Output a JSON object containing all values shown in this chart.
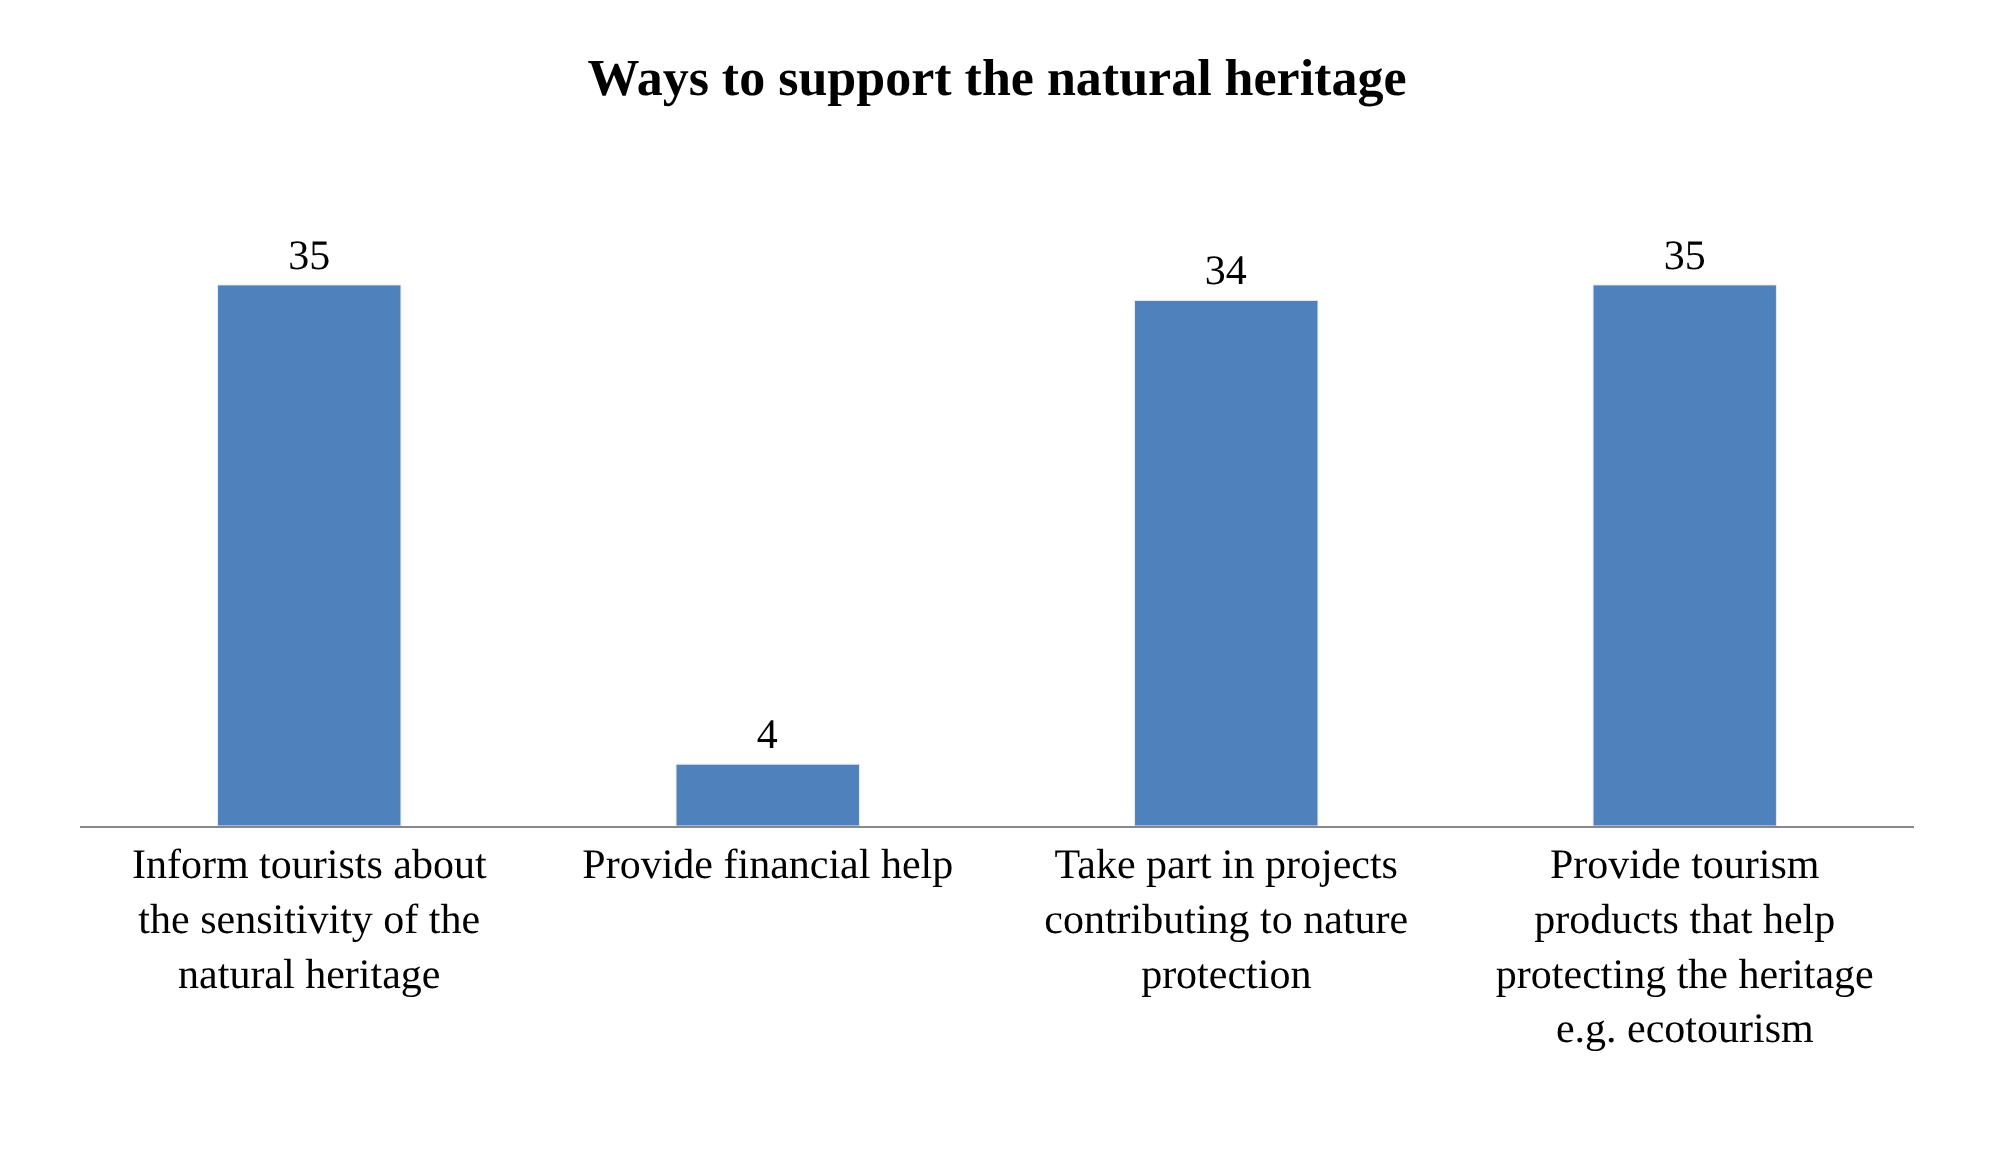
{
  "chart_data": {
    "type": "bar",
    "title": "Ways to support the natural heritage",
    "categories": [
      "Inform tourists about the sensitivity of the natural heritage",
      "Provide financial help",
      "Take part in projects contributing to nature protection",
      "Provide tourism products that help protecting the heritage e.g. ecotourism"
    ],
    "values": [
      35,
      4,
      34,
      35
    ],
    "color": "#4f81bd",
    "data_labels": true
  }
}
